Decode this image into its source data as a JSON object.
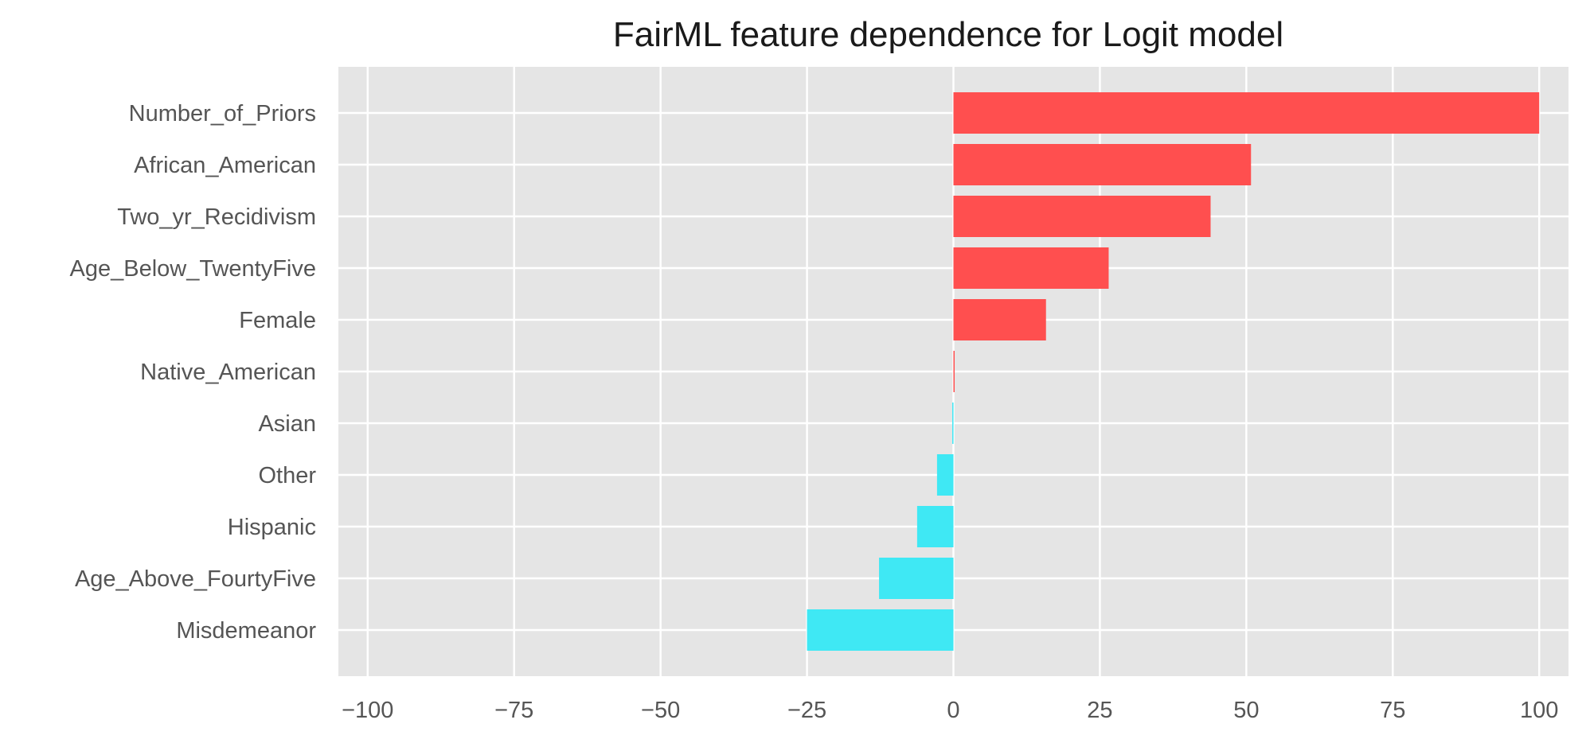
{
  "chart_data": {
    "type": "bar",
    "orientation": "horizontal",
    "title": "FairML feature dependence for Logit model",
    "xlabel": "",
    "ylabel": "",
    "xlim": [
      -105,
      105
    ],
    "xticks": [
      -100,
      -75,
      -50,
      -25,
      0,
      25,
      50,
      75,
      100
    ],
    "xtick_labels": [
      "−100",
      "−75",
      "−50",
      "−25",
      "0",
      "25",
      "50",
      "75",
      "100"
    ],
    "grid": true,
    "categories": [
      "Number_of_Priors",
      "African_American",
      "Two_yr_Recidivism",
      "Age_Below_TwentyFive",
      "Female",
      "Native_American",
      "Asian",
      "Other",
      "Hispanic",
      "Age_Above_FourtyFive",
      "Misdemeanor"
    ],
    "values": [
      100,
      50.8,
      43.9,
      26.5,
      15.8,
      0.2,
      -0.2,
      -2.8,
      -6.2,
      -12.7,
      -25.0
    ],
    "colors": {
      "positive": "#ff4f4f",
      "negative": "#3fe8f4",
      "plot_background": "#e5e5e5",
      "grid": "#ffffff"
    }
  }
}
